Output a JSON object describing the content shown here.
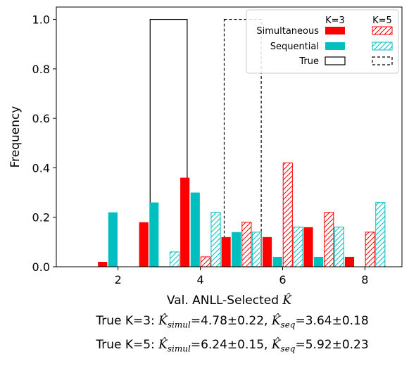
{
  "chart_data": {
    "type": "bar",
    "title": "",
    "xlabel_prefix": "Val. ANLL-Selected ",
    "xlabel_symbol": "K̂",
    "ylabel": "Frequency",
    "xlim": [
      0.5,
      8.9
    ],
    "ylim": [
      0,
      1.05
    ],
    "xticks": [
      2,
      4,
      6,
      8
    ],
    "yticks": [
      "0.0",
      "0.2",
      "0.4",
      "0.6",
      "0.8",
      "1.0"
    ],
    "x": [
      1,
      2,
      3,
      4,
      5,
      6,
      7,
      8
    ],
    "colors": {
      "simultaneous": "#ff0000",
      "sequential": "#00bfbf",
      "true": "#000000"
    },
    "legend": {
      "position": "top-right",
      "col_headers": [
        "K=3",
        "K=5"
      ],
      "rows": [
        "Simultaneous",
        "Sequential",
        "True"
      ]
    },
    "series": [
      {
        "name": "Simultaneous",
        "k": 3,
        "hatched": false,
        "offset": -0.375,
        "values": [
          0.0,
          0.02,
          0.18,
          0.36,
          0.12,
          0.12,
          0.16,
          0.04
        ]
      },
      {
        "name": "Sequential",
        "k": 3,
        "hatched": false,
        "offset": -0.125,
        "values": [
          0.0,
          0.22,
          0.26,
          0.3,
          0.14,
          0.04,
          0.04,
          0.0
        ]
      },
      {
        "name": "Simultaneous",
        "k": 5,
        "hatched": true,
        "offset": 0.125,
        "values": [
          0.0,
          0.0,
          0.0,
          0.04,
          0.18,
          0.42,
          0.22,
          0.14
        ]
      },
      {
        "name": "Sequential",
        "k": 5,
        "hatched": true,
        "offset": 0.375,
        "values": [
          0.0,
          0.0,
          0.06,
          0.22,
          0.14,
          0.16,
          0.16,
          0.26
        ]
      }
    ],
    "true_bars": [
      {
        "k": 3,
        "x0": 2.78,
        "x1": 3.68,
        "value": 1.0,
        "dashed": false
      },
      {
        "k": 5,
        "x0": 4.58,
        "x1": 5.48,
        "value": 1.0,
        "dashed": true
      }
    ]
  },
  "captions": {
    "line1": {
      "prefix": "True K=3: ",
      "simul": "=4.78±0.22, ",
      "seq": "=3.64±0.18"
    },
    "line2": {
      "prefix": "True K=5: ",
      "simul": "=6.24±0.15, ",
      "seq": "=5.92±0.23"
    },
    "symbol": "K̂",
    "simul_sub": "simul",
    "seq_sub": "seq"
  }
}
